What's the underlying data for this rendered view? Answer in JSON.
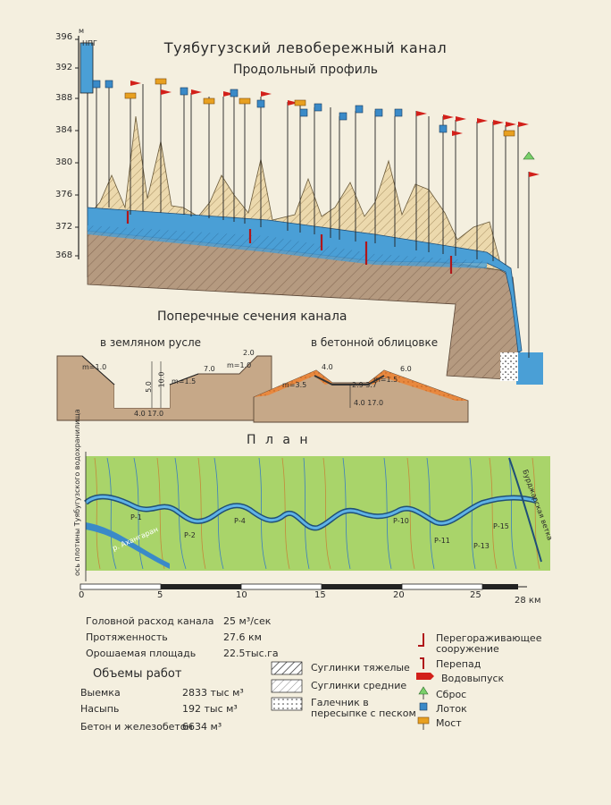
{
  "title": "Туябугузский левобережный канал",
  "subtitle": "Продольный профиль",
  "profile": {
    "unit_label": "м",
    "npg_label": "НПГ",
    "elevation_ticks": [
      "396",
      "392",
      "388",
      "384",
      "380",
      "376",
      "372",
      "368"
    ]
  },
  "cross_sections": {
    "title": "Поперечные сечения канала",
    "earth": {
      "title": "в земляном русле",
      "slope_left": "m=1.0",
      "depth1": "5.0",
      "depth2": "10.0",
      "slope_mid": "m=1.5",
      "top_width": "7.0",
      "slope_right": "m=1.0",
      "berm": "2.0",
      "bottom": "4.0 17.0"
    },
    "concrete": {
      "title": "в бетонной облицовке",
      "slope_left": "m=3.5",
      "width_left": "4.0",
      "middle": "2.9 3.7",
      "slope_mid": "m=1.5",
      "width_right": "6.0",
      "bottom": "4.0 17.0"
    }
  },
  "plan": {
    "title": "П л а н",
    "axis_label": "ось плотины Туябугузского водохранилища",
    "river_labels": [
      "р. Ахангаран",
      "Бурджарская ветка"
    ],
    "station_labels": [
      "Р-1",
      "Р-2",
      "Р-4",
      "Р-10",
      "Р-11",
      "Р-13",
      "Р-15"
    ],
    "scale_ticks": [
      "0",
      "5",
      "10",
      "15",
      "20",
      "25",
      "28 км"
    ]
  },
  "stats": {
    "head_discharge_label": "Головной расход канала",
    "head_discharge_value": "25 м³/сек",
    "length_label": "Протяженность",
    "length_value": "27.6 км",
    "area_label": "Орошаемая площадь",
    "area_value": "22.5тыс.га"
  },
  "works": {
    "title": "Объемы работ",
    "excavation_label": "Выемка",
    "excavation_value": "2833 тыс м³",
    "embankment_label": "Насыпь",
    "embankment_value": "192 тыс м³",
    "concrete_label": "Бетон и железобетон",
    "concrete_value": "6634 м³"
  },
  "soil_legend": {
    "heavy": "Суглинки тяжелые",
    "medium": "Суглинки средние",
    "gravel": "Галечник в пересыпке с песком"
  },
  "structure_legend": {
    "regulator": "Перегораживающее сооружение",
    "drop": "Перепад",
    "outlet": "Водовыпуск",
    "spillway": "Сброс",
    "flume": "Лоток",
    "bridge": "Мост"
  },
  "colors": {
    "paper": "#f4efdf",
    "water": "#4a9fd6",
    "ground": "#b59a80",
    "hill": "#e9d6a8",
    "plan": "#a9d46a",
    "flag": "#d2201a",
    "bridge": "#e8a020",
    "flume": "#3a8ac8"
  }
}
